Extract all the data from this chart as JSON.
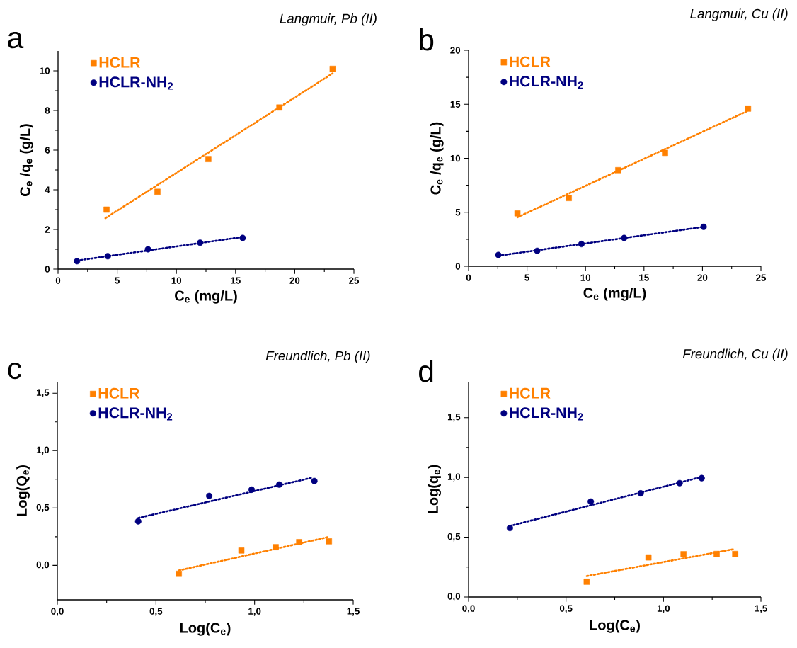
{
  "chart_data": [
    {
      "type": "scatter",
      "title": "Langmuir, Pb (II)",
      "annotations": [
        "a"
      ],
      "xlabel": "C$_{e}$ (mg/L)",
      "ylabel": "C$_{e}$ /q$_{e}$ (g/L)",
      "xlim": [
        0,
        25
      ],
      "ylim": [
        0,
        11
      ],
      "xticks": [
        0,
        5,
        10,
        15,
        20,
        25
      ],
      "yticks": [
        0,
        2,
        4,
        6,
        8,
        10
      ],
      "legend": "top left",
      "series": [
        {
          "name": "HCLR",
          "color": "#ff8000",
          "marker": "square",
          "x": [
            4.1,
            8.4,
            12.7,
            18.7,
            23.2
          ],
          "values": [
            3.0,
            3.9,
            5.55,
            8.15,
            10.1
          ]
        },
        {
          "name": "HCLR-NH$_{2}$",
          "color": "#000080",
          "marker": "circle",
          "x": [
            1.6,
            4.2,
            7.6,
            12.0,
            15.6
          ],
          "values": [
            0.4,
            0.65,
            1.0,
            1.33,
            1.57
          ]
        },
        {
          "type": "line",
          "color": "#ff8000",
          "line_style": "dotted",
          "x": [
            4.0,
            23.2
          ],
          "values": [
            2.57,
            9.87
          ]
        },
        {
          "type": "line",
          "color": "#000080",
          "line_style": "dotted",
          "x": [
            1.6,
            15.6
          ],
          "values": [
            0.43,
            1.62
          ]
        }
      ]
    },
    {
      "type": "scatter",
      "title": "Langmuir, Cu (II)",
      "annotations": [
        "b"
      ],
      "xlabel": "C$_{e}$ (mg/L)",
      "ylabel": "C$_{e}$ /q$_{e}$ (g/L)",
      "xlim": [
        0,
        25
      ],
      "ylim": [
        0,
        20
      ],
      "xticks": [
        0,
        5,
        10,
        15,
        20,
        25
      ],
      "yticks": [
        0,
        5,
        10,
        15,
        20
      ],
      "legend": "top left",
      "series": [
        {
          "name": "HCLR",
          "color": "#ff8000",
          "marker": "square",
          "x": [
            4.18,
            8.57,
            12.8,
            16.8,
            23.9
          ],
          "values": [
            4.9,
            6.32,
            8.9,
            10.5,
            14.6
          ]
        },
        {
          "name": "HCLR-NH$_{2}$",
          "color": "#000080",
          "marker": "circle",
          "x": [
            2.55,
            5.87,
            9.65,
            13.3,
            20.1
          ],
          "values": [
            1.05,
            1.43,
            2.06,
            2.62,
            3.65
          ]
        },
        {
          "type": "line",
          "color": "#ff8000",
          "line_style": "dotted",
          "x": [
            4.18,
            23.9
          ],
          "values": [
            4.54,
            14.4
          ]
        },
        {
          "type": "line",
          "color": "#000080",
          "line_style": "dotted",
          "x": [
            2.55,
            20.1
          ],
          "values": [
            0.98,
            3.65
          ]
        }
      ]
    },
    {
      "type": "scatter",
      "title": "Freundlich, Pb (II)",
      "annotations": [
        "c"
      ],
      "xlabel": "Log(C$_{e}$)",
      "ylabel": "Log(Q$_{e}$)",
      "xlim": [
        0,
        1.5
      ],
      "ylim": [
        -0.3,
        1.6
      ],
      "xticks": [
        {
          "value": 0,
          "label": "0,0"
        },
        {
          "value": 0.5,
          "label": "0,5"
        },
        {
          "value": 1,
          "label": "1,0"
        },
        {
          "value": 1.5,
          "label": "1,5"
        }
      ],
      "yticks": [
        {
          "value": 0,
          "label": "0,0"
        },
        {
          "value": 0.5,
          "label": "0,5"
        },
        {
          "value": 1,
          "label": "1,0"
        },
        {
          "value": 1.5,
          "label": "1,5"
        }
      ],
      "legend": "top left",
      "series": [
        {
          "name": "HCLR",
          "color": "#ff8000",
          "marker": "square",
          "x": [
            0.616,
            0.933,
            1.107,
            1.226,
            1.377
          ],
          "values": [
            -0.073,
            0.13,
            0.159,
            0.203,
            0.21
          ]
        },
        {
          "name": "HCLR-NH$_{2}$",
          "color": "#000080",
          "marker": "circle",
          "x": [
            0.41,
            0.77,
            0.985,
            1.125,
            1.303
          ],
          "values": [
            0.384,
            0.605,
            0.66,
            0.704,
            0.735
          ]
        },
        {
          "type": "line",
          "color": "#ff8000",
          "line_style": "dotted",
          "x": [
            0.616,
            1.374
          ],
          "values": [
            -0.044,
            0.247
          ]
        },
        {
          "type": "line",
          "color": "#000080",
          "line_style": "dotted",
          "x": [
            0.41,
            1.286
          ],
          "values": [
            0.413,
            0.762
          ]
        }
      ]
    },
    {
      "type": "scatter",
      "title": "Freundlich, Cu (II)",
      "annotations": [
        "d"
      ],
      "xlabel": "Log(C$_{e}$)",
      "ylabel": "Log(q$_{e}$)",
      "xlim": [
        0,
        1.5
      ],
      "ylim": [
        0,
        1.8
      ],
      "xticks": [
        {
          "value": 0,
          "label": "0,0"
        },
        {
          "value": 0.5,
          "label": "0,5"
        },
        {
          "value": 1,
          "label": "1,0"
        },
        {
          "value": 1.5,
          "label": "1,5"
        }
      ],
      "yticks": [
        {
          "value": 0,
          "label": "0,0"
        },
        {
          "value": 0.5,
          "label": "0,5"
        },
        {
          "value": 1,
          "label": "1,0"
        },
        {
          "value": 1.5,
          "label": "1,5"
        }
      ],
      "legend": "top left",
      "series": [
        {
          "name": "HCLR",
          "color": "#ff8000",
          "marker": "square",
          "x": [
            0.606,
            0.923,
            1.103,
            1.273,
            1.368
          ],
          "values": [
            0.128,
            0.331,
            0.358,
            0.36,
            0.36
          ]
        },
        {
          "name": "HCLR-NH$_{2}$",
          "color": "#000080",
          "marker": "circle",
          "x": [
            0.212,
            0.627,
            0.883,
            1.083,
            1.196
          ],
          "values": [
            0.577,
            0.798,
            0.867,
            0.952,
            0.994
          ]
        },
        {
          "type": "line",
          "color": "#ff8000",
          "line_style": "dotted",
          "x": [
            0.606,
            1.361
          ],
          "values": [
            0.175,
            0.4
          ]
        },
        {
          "type": "line",
          "color": "#000080",
          "line_style": "dotted",
          "x": [
            0.212,
            1.196
          ],
          "values": [
            0.594,
            1.004
          ]
        }
      ]
    }
  ]
}
